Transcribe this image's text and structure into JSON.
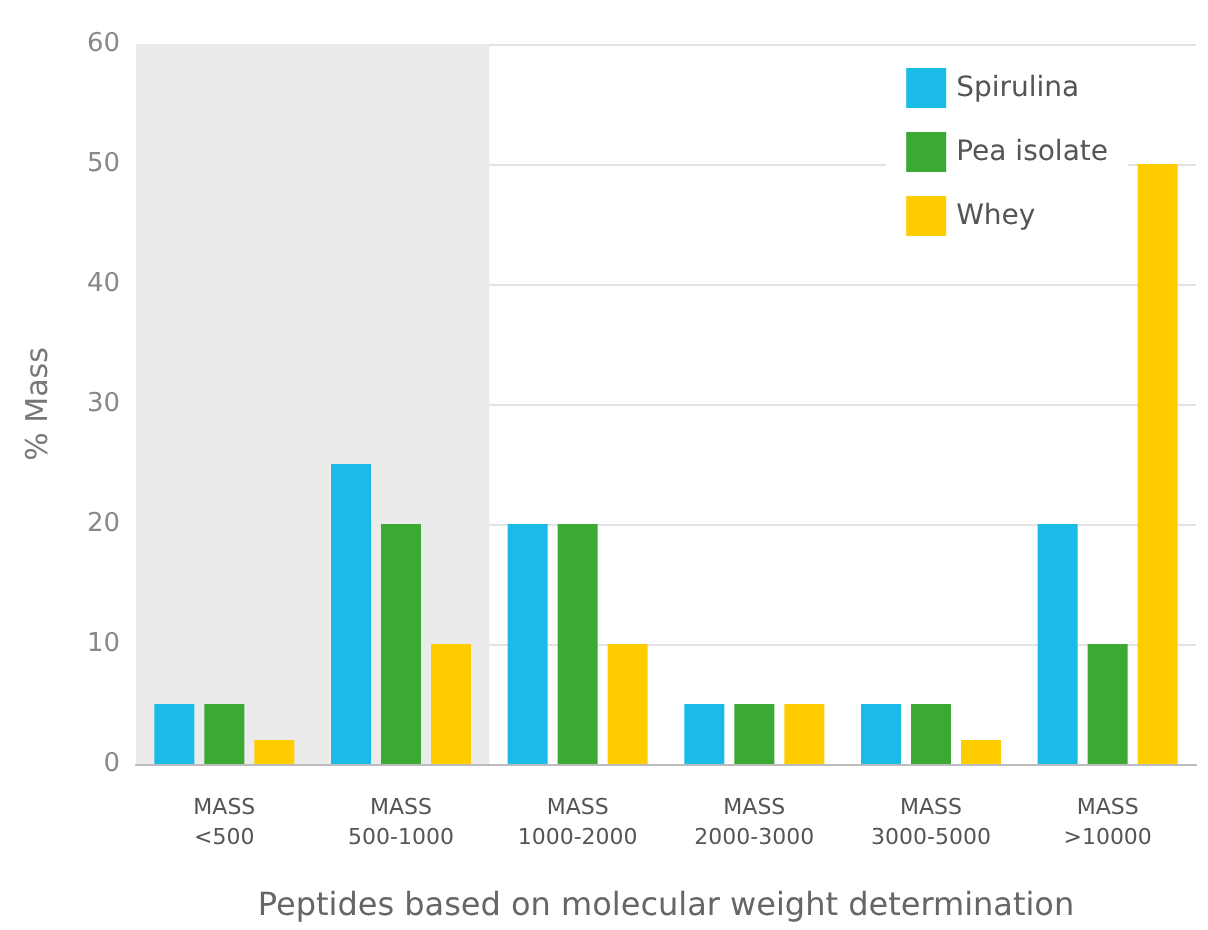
{
  "chart_data": {
    "type": "bar",
    "xlabel": "Peptides based on molecular weight determination",
    "ylabel": "% Mass",
    "categories": [
      "MASS\n<500",
      "MASS\n500-1000",
      "MASS\n1000-2000",
      "MASS\n2000-3000",
      "MASS\n3000-5000",
      "MASS\n>10000"
    ],
    "series": [
      {
        "name": "Spirulina",
        "color": "#1abbe6",
        "values": [
          5,
          25,
          20,
          5,
          5,
          20
        ]
      },
      {
        "name": "Pea isolate",
        "color": "#3aaa35",
        "values": [
          5,
          20,
          20,
          5,
          5,
          10
        ]
      },
      {
        "name": "Whey",
        "color": "#ffcc00",
        "values": [
          2,
          10,
          10,
          5,
          2,
          50
        ]
      }
    ],
    "ylim": [
      0,
      60
    ],
    "yticks": [
      0,
      10,
      20,
      30,
      40,
      50,
      60
    ],
    "grid": "y",
    "legend": "top right",
    "bands": [
      {
        "axis": "x",
        "from": "MASS\n<500",
        "to": "MASS\n500-1000",
        "color": "#ebebeb"
      }
    ]
  }
}
